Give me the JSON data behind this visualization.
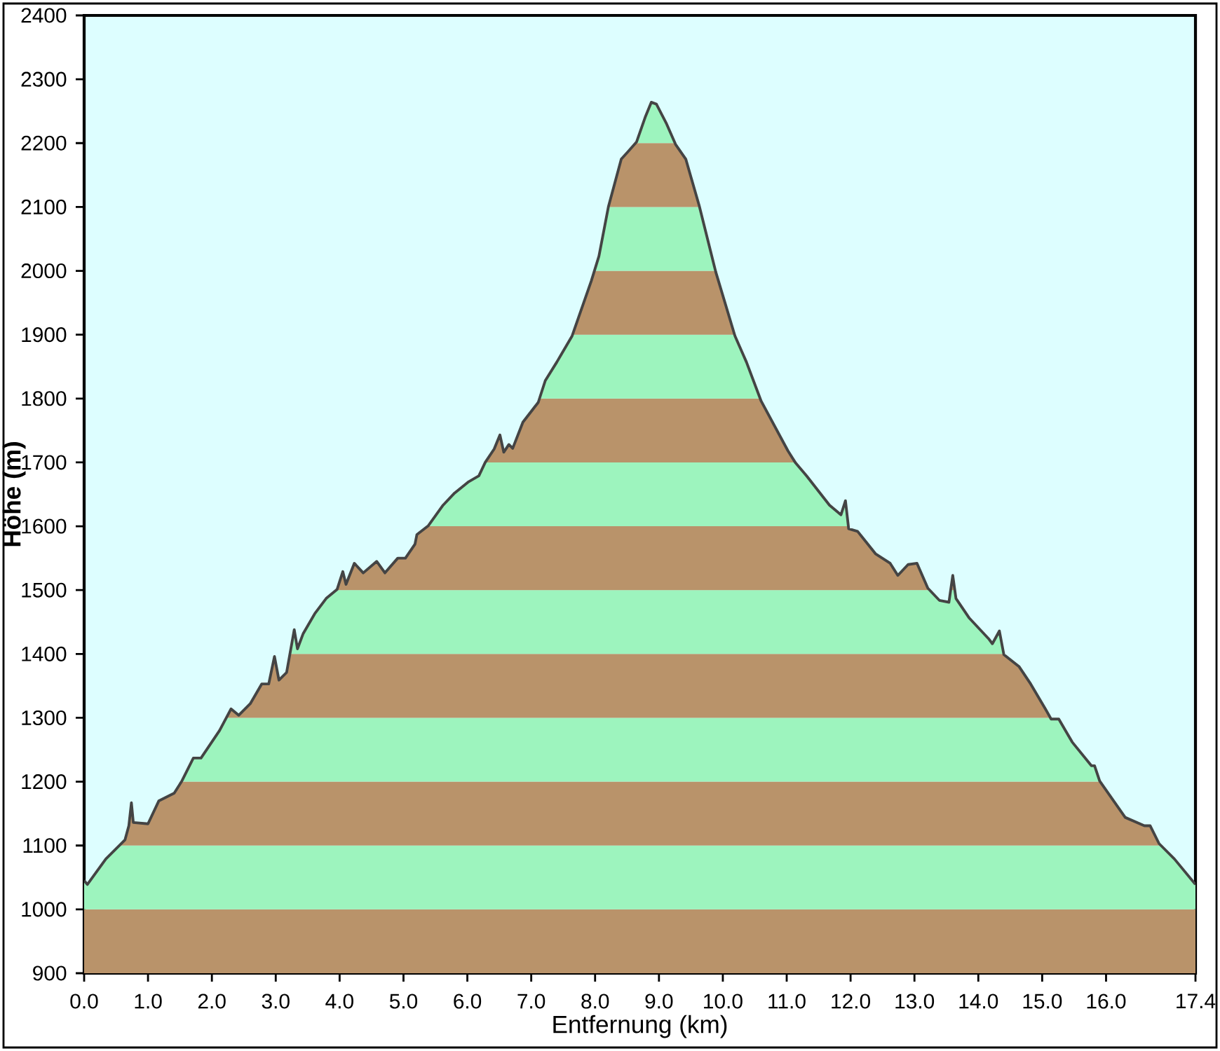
{
  "chart_data": {
    "type": "line",
    "xlabel": "Entfernung  (km)",
    "ylabel": "Höhe (m)",
    "xlim": [
      0,
      17.4
    ],
    "ylim": [
      900,
      2400
    ],
    "xticks": [
      {
        "value": 0,
        "label": "0.0"
      },
      {
        "value": 1,
        "label": "1.0"
      },
      {
        "value": 2,
        "label": "2.0"
      },
      {
        "value": 3,
        "label": "3.0"
      },
      {
        "value": 4,
        "label": "4.0"
      },
      {
        "value": 5,
        "label": "5.0"
      },
      {
        "value": 6,
        "label": "6.0"
      },
      {
        "value": 7,
        "label": "7.0"
      },
      {
        "value": 8,
        "label": "8.0"
      },
      {
        "value": 9,
        "label": "9.0"
      },
      {
        "value": 10,
        "label": "10.0"
      },
      {
        "value": 11,
        "label": "11.0"
      },
      {
        "value": 12,
        "label": "12.0"
      },
      {
        "value": 13,
        "label": "13.0"
      },
      {
        "value": 14,
        "label": "14.0"
      },
      {
        "value": 15,
        "label": "15.0"
      },
      {
        "value": 16,
        "label": "16.0"
      },
      {
        "value": 17.4,
        "label": "17.4"
      }
    ],
    "yticks": [
      900,
      1000,
      1100,
      1200,
      1300,
      1400,
      1500,
      1600,
      1700,
      1800,
      1900,
      2000,
      2100,
      2200,
      2300,
      2400
    ],
    "bands": [
      {
        "axis": "y",
        "from": 900,
        "to": 1000,
        "color": "#b9936a"
      },
      {
        "axis": "y",
        "from": 1000,
        "to": 1100,
        "color": "#9df4be"
      },
      {
        "axis": "y",
        "from": 1100,
        "to": 1200,
        "color": "#b9936a"
      },
      {
        "axis": "y",
        "from": 1200,
        "to": 1300,
        "color": "#9df4be"
      },
      {
        "axis": "y",
        "from": 1300,
        "to": 1400,
        "color": "#b9936a"
      },
      {
        "axis": "y",
        "from": 1400,
        "to": 1500,
        "color": "#9df4be"
      },
      {
        "axis": "y",
        "from": 1500,
        "to": 1600,
        "color": "#b9936a"
      },
      {
        "axis": "y",
        "from": 1600,
        "to": 1700,
        "color": "#9df4be"
      },
      {
        "axis": "y",
        "from": 1700,
        "to": 1800,
        "color": "#b9936a"
      },
      {
        "axis": "y",
        "from": 1800,
        "to": 1900,
        "color": "#9df4be"
      },
      {
        "axis": "y",
        "from": 1900,
        "to": 2000,
        "color": "#b9936a"
      },
      {
        "axis": "y",
        "from": 2000,
        "to": 2100,
        "color": "#9df4be"
      },
      {
        "axis": "y",
        "from": 2100,
        "to": 2200,
        "color": "#b9936a"
      },
      {
        "axis": "y",
        "from": 2200,
        "to": 2300,
        "color": "#9df4be"
      }
    ],
    "series": [
      {
        "color": "#444444",
        "x": [
          0.0,
          0.05,
          0.34,
          0.64,
          0.7,
          0.74,
          0.77,
          1.0,
          1.17,
          1.41,
          1.53,
          1.71,
          1.83,
          2.12,
          2.3,
          2.42,
          2.6,
          2.78,
          2.89,
          2.98,
          3.05,
          3.17,
          3.29,
          3.34,
          3.43,
          3.61,
          3.79,
          3.96,
          4.05,
          4.1,
          4.23,
          4.37,
          4.58,
          4.71,
          4.91,
          5.03,
          5.18,
          5.21,
          5.39,
          5.62,
          5.8,
          6.01,
          6.18,
          6.28,
          6.42,
          6.51,
          6.57,
          6.65,
          6.71,
          6.87,
          7.11,
          7.22,
          7.4,
          7.64,
          7.94,
          8.06,
          8.21,
          8.41,
          8.51,
          8.65,
          8.79,
          8.88,
          8.96,
          9.12,
          9.26,
          9.42,
          9.63,
          9.89,
          10.19,
          10.37,
          10.6,
          11.02,
          11.14,
          11.31,
          11.67,
          11.85,
          11.92,
          11.97,
          12.11,
          12.39,
          12.62,
          12.74,
          12.9,
          13.04,
          13.21,
          13.39,
          13.54,
          13.6,
          13.65,
          13.86,
          14.16,
          14.22,
          14.33,
          14.4,
          14.64,
          14.82,
          15.05,
          15.14,
          15.26,
          15.47,
          15.77,
          15.82,
          15.9,
          16.3,
          16.6,
          16.69,
          16.83,
          17.07,
          17.4
        ],
        "values": [
          1045,
          1039,
          1079,
          1109,
          1131,
          1167,
          1136,
          1134,
          1170,
          1182,
          1201,
          1237,
          1237,
          1280,
          1314,
          1304,
          1322,
          1353,
          1353,
          1396,
          1359,
          1371,
          1438,
          1408,
          1432,
          1463,
          1487,
          1501,
          1529,
          1509,
          1542,
          1527,
          1545,
          1527,
          1550,
          1550,
          1572,
          1587,
          1601,
          1633,
          1652,
          1669,
          1679,
          1700,
          1721,
          1743,
          1716,
          1728,
          1722,
          1763,
          1794,
          1828,
          1857,
          1898,
          1984,
          2023,
          2101,
          2175,
          2186,
          2202,
          2242,
          2264,
          2261,
          2230,
          2198,
          2175,
          2102,
          1998,
          1898,
          1857,
          1796,
          1718,
          1699,
          1679,
          1633,
          1618,
          1640,
          1596,
          1592,
          1557,
          1542,
          1523,
          1540,
          1542,
          1503,
          1484,
          1481,
          1523,
          1487,
          1456,
          1424,
          1416,
          1436,
          1399,
          1380,
          1353,
          1314,
          1298,
          1298,
          1262,
          1225,
          1225,
          1201,
          1144,
          1131,
          1131,
          1103,
          1079,
          1039
        ]
      }
    ]
  }
}
